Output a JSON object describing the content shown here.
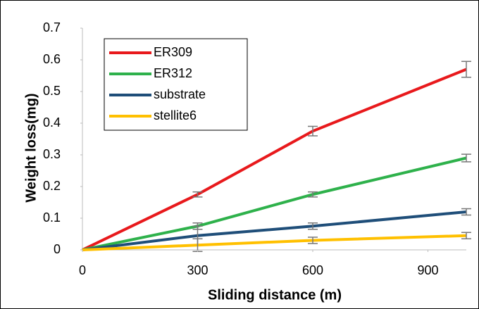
{
  "chart_data": {
    "type": "line",
    "x_label": "Sliding distance (m)",
    "y_label": "Weight loss(mg)",
    "x": [
      0,
      300,
      600,
      1000
    ],
    "series": [
      {
        "name": "ER309",
        "color": "#e8191c",
        "values": [
          0,
          0.175,
          0.375,
          0.57
        ],
        "errors": [
          0,
          0.008,
          0.015,
          0.025
        ]
      },
      {
        "name": "ER312",
        "color": "#2eb14b",
        "values": [
          0,
          0.075,
          0.175,
          0.29
        ],
        "errors": [
          0,
          0.01,
          0.008,
          0.012
        ]
      },
      {
        "name": "substrate",
        "color": "#1f4e79",
        "values": [
          0,
          0.045,
          0.075,
          0.12
        ],
        "errors": [
          0,
          0.03,
          0.01,
          0.01
        ]
      },
      {
        "name": "stellite6",
        "color": "#ffc000",
        "values": [
          0,
          0.015,
          0.03,
          0.045
        ],
        "errors": [
          0,
          0.02,
          0.01,
          0.01
        ]
      }
    ],
    "xlim": [
      0,
      1000
    ],
    "xticks": [
      0,
      300,
      600,
      900
    ],
    "ylim": [
      0,
      0.7
    ],
    "yticks": [
      0,
      0.1,
      0.2,
      0.3,
      0.4,
      0.5,
      0.6,
      0.7
    ],
    "grid": false,
    "legend": "top-left"
  }
}
